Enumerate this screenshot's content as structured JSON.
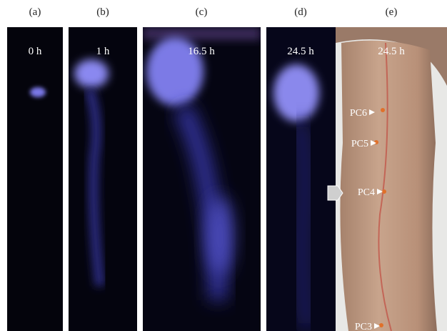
{
  "panels": [
    {
      "label": "(a)",
      "time": "0 h"
    },
    {
      "label": "(b)",
      "time": "1 h"
    },
    {
      "label": "(c)",
      "time": "16.5 h"
    },
    {
      "label": "(d)",
      "time": "24.5 h"
    },
    {
      "label": "(e)",
      "time": "24.5 h"
    }
  ],
  "markers": [
    "PC6",
    "PC5",
    "PC4",
    "PC3"
  ]
}
